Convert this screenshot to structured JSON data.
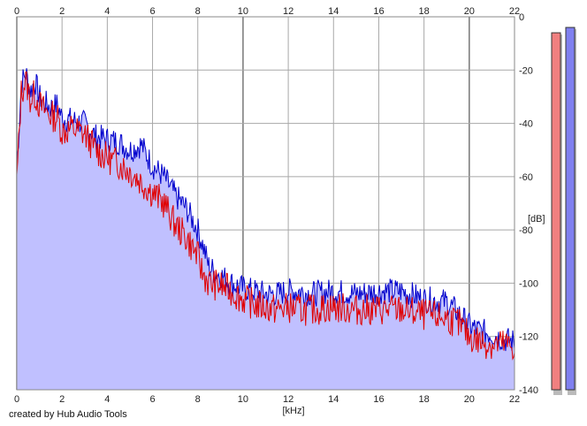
{
  "chart_data": {
    "type": "line",
    "xlabel": "[kHz]",
    "ylabel": "[dB]",
    "xlim": [
      0,
      22
    ],
    "ylim": [
      -140,
      0
    ],
    "x_ticks": [
      0,
      2,
      4,
      6,
      8,
      10,
      12,
      14,
      16,
      18,
      20,
      22
    ],
    "y_ticks": [
      0,
      -20,
      -40,
      -60,
      -80,
      -100,
      -120,
      -140
    ],
    "grid": true,
    "series": [
      {
        "color": "#0000cc",
        "fill": "#c0c0ff",
        "x": [
          0,
          0.2,
          0.4,
          0.6,
          0.8,
          1.0,
          1.2,
          1.5,
          1.8,
          2.0,
          2.5,
          3.0,
          3.5,
          4.0,
          4.5,
          5.0,
          5.5,
          6.0,
          6.5,
          7.0,
          7.5,
          8.0,
          8.2,
          8.5,
          9.0,
          9.5,
          10.0,
          10.5,
          11.0,
          11.5,
          12.0,
          12.5,
          13.0,
          14.0,
          15.0,
          16.0,
          17.0,
          18.0,
          19.0,
          19.5,
          20.0,
          20.5,
          21.0,
          21.5,
          22.0
        ],
        "values": [
          -58,
          -25,
          -21,
          -28,
          -24,
          -30,
          -32,
          -34,
          -33,
          -38,
          -39,
          -40,
          -45,
          -46,
          -47,
          -50,
          -48,
          -56,
          -60,
          -67,
          -72,
          -80,
          -85,
          -94,
          -97,
          -100,
          -102,
          -103,
          -104,
          -104,
          -103,
          -103,
          -104,
          -103,
          -104,
          -103,
          -103,
          -106,
          -107,
          -111,
          -116,
          -118,
          -119,
          -121,
          -122
        ]
      },
      {
        "color": "#e00000",
        "x": [
          0,
          0.2,
          0.4,
          0.6,
          0.8,
          1.0,
          1.2,
          1.5,
          1.8,
          2.0,
          2.5,
          3.0,
          3.5,
          4.0,
          4.5,
          5.0,
          5.5,
          6.0,
          6.5,
          7.0,
          7.5,
          8.0,
          8.2,
          8.5,
          9.0,
          9.5,
          10.0,
          10.5,
          11.0,
          11.5,
          12.0,
          12.5,
          13.0,
          14.0,
          15.0,
          16.0,
          17.0,
          18.0,
          19.0,
          19.5,
          20.0,
          20.5,
          21.0,
          21.5,
          22.0
        ],
        "values": [
          -62,
          -28,
          -24,
          -31,
          -29,
          -33,
          -35,
          -37,
          -38,
          -43,
          -42,
          -44,
          -50,
          -53,
          -55,
          -58,
          -62,
          -66,
          -70,
          -78,
          -83,
          -90,
          -96,
          -100,
          -101,
          -103,
          -106,
          -108,
          -109,
          -110,
          -109,
          -110,
          -110,
          -109,
          -110,
          -110,
          -110,
          -112,
          -113,
          -115,
          -120,
          -122,
          -123,
          -123,
          -124
        ]
      }
    ],
    "level_meters": [
      {
        "color": "#f08080",
        "level_db": -6
      },
      {
        "color": "#8080f0",
        "level_db": -4
      }
    ]
  },
  "credit": "created by Hub Audio Tools"
}
